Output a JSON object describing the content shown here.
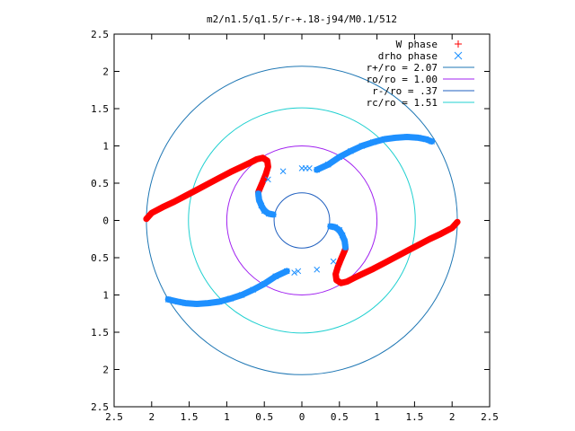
{
  "chart_data": {
    "type": "scatter",
    "title": "m2/n1.5/q1.5/r-+.18-j94/M0.1/512",
    "xlabel": "",
    "ylabel": "",
    "xlim": [
      -2.5,
      2.5
    ],
    "ylim": [
      -2.5,
      2.5
    ],
    "x_tick_values": [
      -2.5,
      -2,
      -1.5,
      -1,
      -0.5,
      0,
      0.5,
      1,
      1.5,
      2,
      2.5
    ],
    "x_tick_labels": [
      "2.5",
      "2",
      "1.5",
      "1",
      "0.5",
      "0",
      "0.5",
      "1",
      "1.5",
      "2",
      "2.5"
    ],
    "y_tick_values": [
      2.5,
      2,
      1.5,
      1,
      0.5,
      0,
      -0.5,
      -1,
      -1.5,
      -2,
      -2.5
    ],
    "y_tick_labels": [
      "2.5",
      "2",
      "1.5",
      "1",
      "0.5",
      "0",
      "0.5",
      "1",
      "1.5",
      "2",
      "2.5"
    ],
    "grid": false,
    "legend_position": "top-right",
    "series": [
      {
        "name": "W phase",
        "kind": "points",
        "marker": "+",
        "color": "#ff0000",
        "arms": [
          [
            [
              -2.07,
              0.02
            ],
            [
              -2.0,
              0.1
            ],
            [
              -1.85,
              0.18
            ],
            [
              -1.7,
              0.25
            ],
            [
              -1.55,
              0.33
            ],
            [
              -1.4,
              0.41
            ],
            [
              -1.25,
              0.49
            ],
            [
              -1.1,
              0.57
            ],
            [
              -0.95,
              0.65
            ],
            [
              -0.8,
              0.72
            ],
            [
              -0.7,
              0.77
            ],
            [
              -0.6,
              0.82
            ],
            [
              -0.52,
              0.84
            ],
            [
              -0.46,
              0.8
            ],
            [
              -0.45,
              0.72
            ],
            [
              -0.48,
              0.62
            ],
            [
              -0.52,
              0.52
            ],
            [
              -0.55,
              0.45
            ],
            [
              -0.58,
              0.38
            ]
          ],
          [
            [
              2.07,
              -0.02
            ],
            [
              2.0,
              -0.1
            ],
            [
              1.85,
              -0.18
            ],
            [
              1.7,
              -0.25
            ],
            [
              1.55,
              -0.33
            ],
            [
              1.4,
              -0.41
            ],
            [
              1.25,
              -0.49
            ],
            [
              1.1,
              -0.57
            ],
            [
              0.95,
              -0.65
            ],
            [
              0.8,
              -0.72
            ],
            [
              0.7,
              -0.77
            ],
            [
              0.6,
              -0.82
            ],
            [
              0.52,
              -0.84
            ],
            [
              0.46,
              -0.8
            ],
            [
              0.45,
              -0.72
            ],
            [
              0.48,
              -0.62
            ],
            [
              0.52,
              -0.52
            ],
            [
              0.55,
              -0.45
            ],
            [
              0.58,
              -0.38
            ]
          ]
        ]
      },
      {
        "name": "drho phase",
        "kind": "points",
        "marker": "x",
        "color": "#1e90ff",
        "arms": [
          [
            [
              0.2,
              0.68
            ],
            [
              0.35,
              0.75
            ],
            [
              0.5,
              0.85
            ],
            [
              0.65,
              0.93
            ],
            [
              0.8,
              1.0
            ],
            [
              0.95,
              1.05
            ],
            [
              1.1,
              1.09
            ],
            [
              1.25,
              1.11
            ],
            [
              1.4,
              1.12
            ],
            [
              1.55,
              1.11
            ],
            [
              1.65,
              1.09
            ],
            [
              1.73,
              1.06
            ]
          ],
          [
            [
              -0.2,
              -0.68
            ],
            [
              -0.35,
              -0.75
            ],
            [
              -0.5,
              -0.85
            ],
            [
              -0.65,
              -0.93
            ],
            [
              -0.8,
              -1.0
            ],
            [
              -0.95,
              -1.05
            ],
            [
              -1.1,
              -1.09
            ],
            [
              -1.25,
              -1.11
            ],
            [
              -1.4,
              -1.12
            ],
            [
              -1.55,
              -1.11
            ],
            [
              -1.65,
              -1.09
            ],
            [
              -1.78,
              -1.06
            ]
          ],
          [
            [
              -0.58,
              0.36
            ],
            [
              -0.57,
              0.28
            ],
            [
              -0.54,
              0.2
            ],
            [
              -0.5,
              0.13
            ],
            [
              -0.44,
              0.09
            ],
            [
              -0.38,
              0.08
            ]
          ],
          [
            [
              0.58,
              -0.36
            ],
            [
              0.57,
              -0.28
            ],
            [
              0.54,
              -0.2
            ],
            [
              0.5,
              -0.13
            ],
            [
              0.44,
              -0.09
            ],
            [
              0.38,
              -0.08
            ]
          ]
        ],
        "scatter_points": [
          [
            0.0,
            0.7
          ],
          [
            0.05,
            0.7
          ],
          [
            0.1,
            0.7
          ],
          [
            -0.25,
            0.66
          ],
          [
            -0.45,
            0.55
          ],
          [
            -0.05,
            -0.68
          ],
          [
            0.2,
            -0.66
          ],
          [
            0.42,
            -0.55
          ],
          [
            -0.1,
            -0.7
          ]
        ]
      },
      {
        "name": "r+/ro = 2.07",
        "kind": "circle",
        "radius": 2.07,
        "color": "#1f77b4"
      },
      {
        "name": "ro/ro = 1.00",
        "kind": "circle",
        "radius": 1.0,
        "color": "#a020f0"
      },
      {
        "name": "r-/ro = .37",
        "kind": "circle",
        "radius": 0.37,
        "color": "#1f5fbf"
      },
      {
        "name": "rc/ro = 1.51",
        "kind": "circle",
        "radius": 1.51,
        "color": "#20d0d0"
      }
    ]
  }
}
